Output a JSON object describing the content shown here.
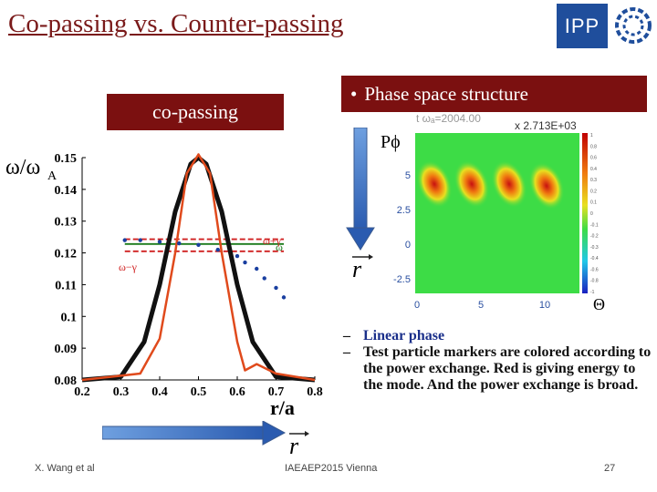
{
  "slide": {
    "title": "Co-passing vs. Counter-passing",
    "logo_text": "IPP"
  },
  "left_panel": {
    "label": "co-passing"
  },
  "right_panel": {
    "header_bullet": "•",
    "header": "Phase space structure",
    "p_label": "Pϕ",
    "theta_label": "Θ",
    "time_label": "t ωₐ=2004.00",
    "scale_label": "x 2.713E+03",
    "y_ticks": [
      "5",
      "2.5",
      "0",
      "-2.5"
    ],
    "x_ticks": [
      "0",
      "5",
      "10"
    ],
    "colorbar_ticks": [
      "1",
      "0.8",
      "0.6",
      "0.4",
      "0.3",
      "0.2",
      "0.1",
      "0",
      "-0.1",
      "-0.2",
      "-0.3",
      "-0.4",
      "-0.6",
      "-0.8",
      "-1"
    ]
  },
  "chart_data": {
    "type": "line",
    "ylabel": "ω/ω\nA",
    "xlabel": "r/a",
    "xlim": [
      0.2,
      0.8
    ],
    "ylim": [
      0.08,
      0.15
    ],
    "x_ticks": [
      "0.2",
      "0.3",
      "0.4",
      "0.5",
      "0.6",
      "0.7",
      "0.8"
    ],
    "y_ticks": [
      "0.15",
      "0.14",
      "0.13",
      "0.12",
      "0.11",
      "0.1",
      "0.09",
      "0.08"
    ],
    "series": [
      {
        "kind": "black-profile",
        "x": [
          0.2,
          0.3,
          0.36,
          0.4,
          0.44,
          0.48,
          0.5,
          0.52,
          0.56,
          0.6,
          0.64,
          0.7,
          0.8
        ],
        "values": [
          0.08,
          0.081,
          0.092,
          0.11,
          0.133,
          0.148,
          0.15,
          0.148,
          0.133,
          0.11,
          0.092,
          0.081,
          0.08
        ]
      },
      {
        "kind": "orange-profile",
        "x": [
          0.2,
          0.35,
          0.4,
          0.44,
          0.47,
          0.5,
          0.53,
          0.56,
          0.6,
          0.62,
          0.65,
          0.7,
          0.8
        ],
        "values": [
          0.08,
          0.082,
          0.093,
          0.12,
          0.145,
          0.151,
          0.145,
          0.12,
          0.092,
          0.083,
          0.085,
          0.082,
          0.08
        ]
      },
      {
        "name": "ω+γ",
        "x": [
          0.31,
          0.72
        ],
        "values": [
          0.1243,
          0.1243
        ]
      },
      {
        "name": "ω",
        "x": [
          0.31,
          0.72
        ],
        "values": [
          0.1228,
          0.1228
        ]
      },
      {
        "name": "ω−γ",
        "x": [
          0.31,
          0.72
        ],
        "values": [
          0.1205,
          0.1205
        ]
      },
      {
        "kind": "blue-dots",
        "x": [
          0.31,
          0.35,
          0.4,
          0.45,
          0.5,
          0.55,
          0.6,
          0.62,
          0.65,
          0.67,
          0.7,
          0.72
        ],
        "values": [
          0.124,
          0.124,
          0.1235,
          0.123,
          0.1225,
          0.121,
          0.119,
          0.117,
          0.115,
          0.112,
          0.109,
          0.106
        ]
      }
    ]
  },
  "bullets": [
    {
      "dash": "–",
      "text": "Linear phase",
      "accent": true
    },
    {
      "dash": "–",
      "text": "Test particle markers are colored according to the power exchange. Red is giving energy to the mode. And the power exchange is broad.",
      "accent": false
    }
  ],
  "footer": {
    "author": "X. Wang et al",
    "conference": "IAEAEP2015 Vienna",
    "page": "27"
  },
  "colors": {
    "title": "#7a1a1a",
    "header_bg": "#7b1010",
    "black_profile": "#111111",
    "orange_profile": "#e04a1c",
    "green_line": "#1a7a1a",
    "red_dashed": "#d02020",
    "blue_dots": "#1a3fa0",
    "heatmap_bg": "#3ddc46"
  }
}
